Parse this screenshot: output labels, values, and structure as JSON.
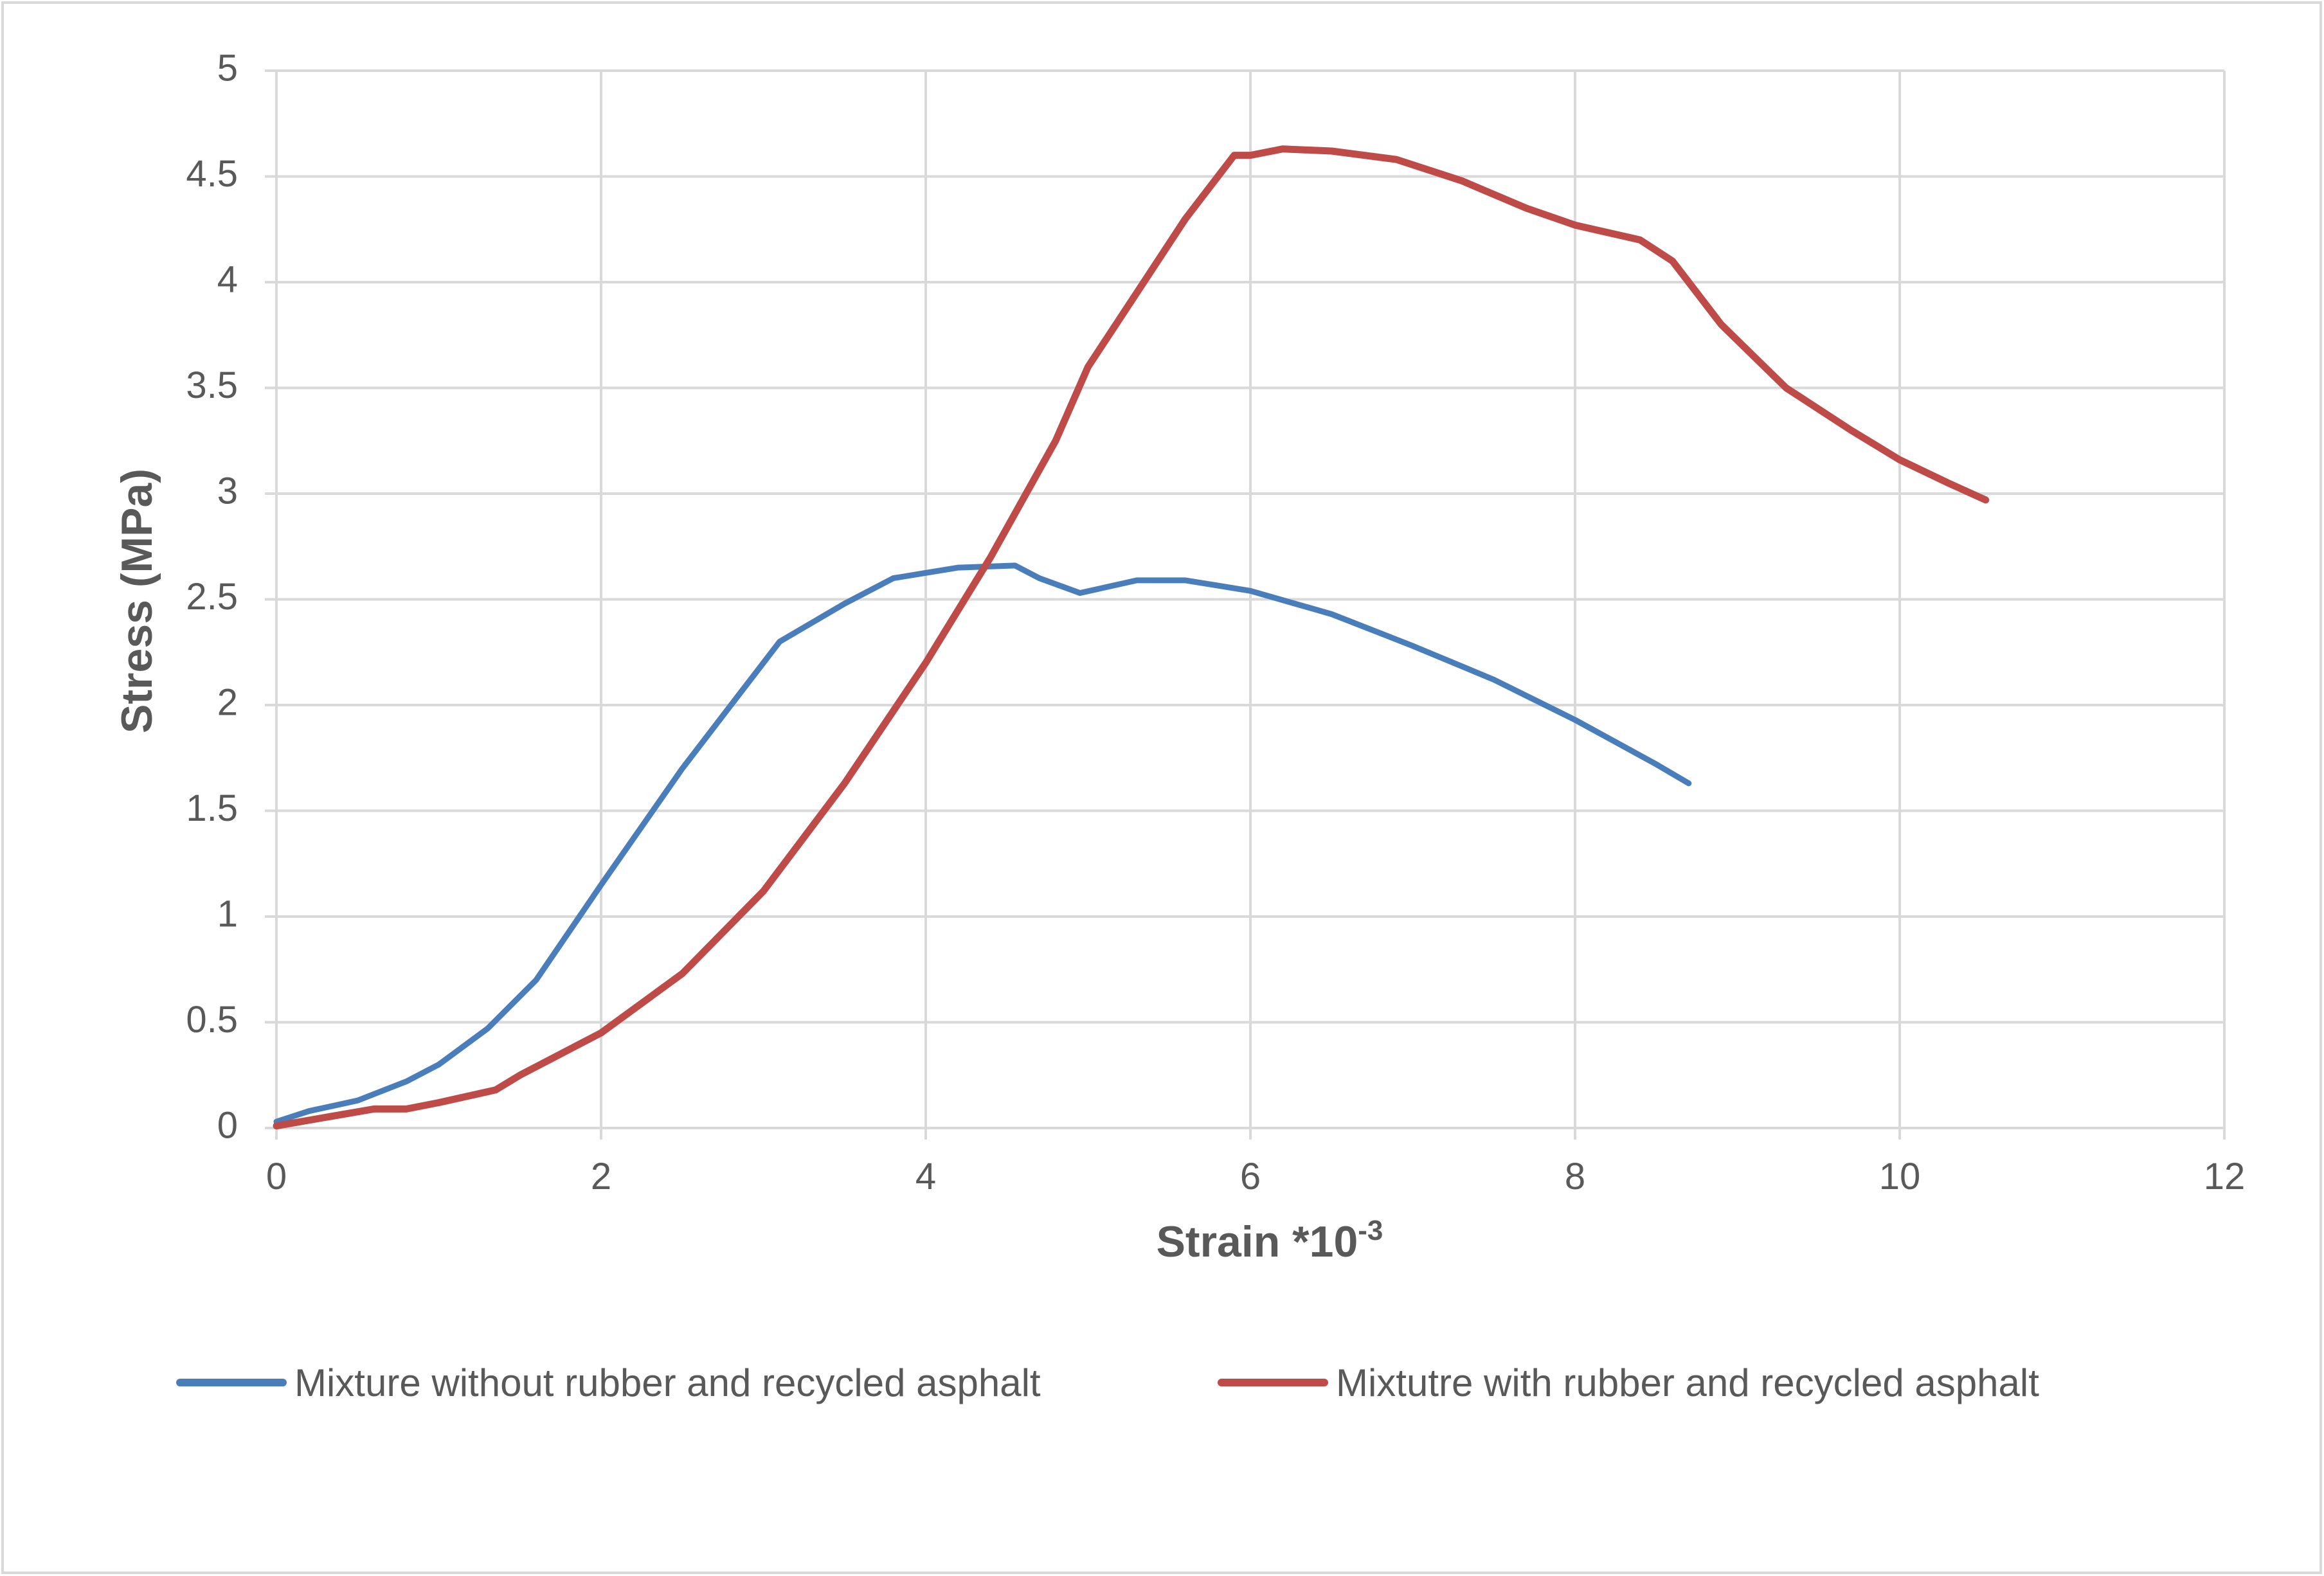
{
  "chart_data": {
    "type": "line",
    "title": "",
    "xlabel": "Strain *10",
    "xlabel_superscript": "-3",
    "ylabel": "Stress (MPa)",
    "xlim": [
      0,
      12
    ],
    "ylim": [
      0,
      5
    ],
    "x_ticks": [
      0,
      2,
      4,
      6,
      8,
      10,
      12
    ],
    "y_ticks": [
      0,
      0.5,
      1,
      1.5,
      2,
      2.5,
      3,
      3.5,
      4,
      4.5,
      5
    ],
    "x_tick_labels": [
      "0",
      "2",
      "4",
      "6",
      "8",
      "10",
      "12"
    ],
    "y_tick_labels": [
      "0",
      "0.5",
      "1",
      "1.5",
      "2",
      "2.5",
      "3",
      "3.5",
      "4",
      "4.5",
      "5"
    ],
    "grid": true,
    "legend_position": "bottom",
    "series": [
      {
        "name": "Mixture without rubber and recycled asphalt",
        "color": "#4a7ebb",
        "x": [
          0,
          0.2,
          0.5,
          0.8,
          1.0,
          1.3,
          1.6,
          2.0,
          2.5,
          3.0,
          3.1,
          3.5,
          3.8,
          4.2,
          4.55,
          4.7,
          4.95,
          5.3,
          5.6,
          6.0,
          6.5,
          7.0,
          7.5,
          8.0,
          8.5,
          8.7
        ],
        "y": [
          0.03,
          0.08,
          0.13,
          0.22,
          0.3,
          0.47,
          0.7,
          1.15,
          1.7,
          2.2,
          2.3,
          2.48,
          2.6,
          2.65,
          2.66,
          2.6,
          2.53,
          2.59,
          2.59,
          2.54,
          2.43,
          2.28,
          2.12,
          1.93,
          1.72,
          1.63
        ]
      },
      {
        "name": "Mixtutre with rubber and recycled asphalt",
        "color": "#be4b48",
        "x": [
          0,
          0.3,
          0.6,
          0.8,
          1.0,
          1.35,
          1.5,
          2.0,
          2.5,
          3.0,
          3.5,
          4.0,
          4.4,
          4.8,
          5.0,
          5.3,
          5.6,
          5.9,
          6.0,
          6.2,
          6.5,
          6.9,
          7.3,
          7.7,
          8.0,
          8.4,
          8.6,
          8.9,
          9.3,
          9.7,
          10.0,
          10.3,
          10.53
        ],
        "y": [
          0.01,
          0.05,
          0.09,
          0.09,
          0.12,
          0.18,
          0.25,
          0.45,
          0.73,
          1.12,
          1.63,
          2.2,
          2.7,
          3.25,
          3.6,
          3.95,
          4.3,
          4.6,
          4.6,
          4.63,
          4.62,
          4.58,
          4.48,
          4.35,
          4.27,
          4.2,
          4.1,
          3.8,
          3.5,
          3.3,
          3.16,
          3.05,
          2.97
        ]
      }
    ]
  }
}
